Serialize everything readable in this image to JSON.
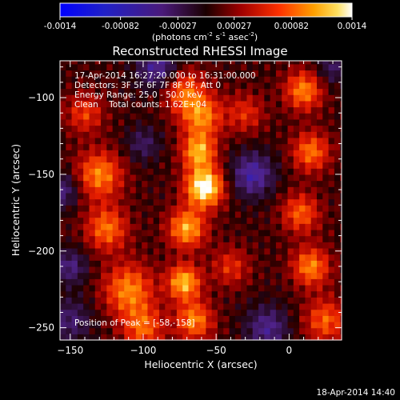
{
  "colorbar": {
    "ticks": [
      "-0.0014",
      "-0.00082",
      "-0.00027",
      "0.00027",
      "0.00082",
      "0.0014"
    ],
    "tick_values": [
      -0.0014,
      -0.00082,
      -0.00027,
      0.00027,
      0.00082,
      0.0014
    ],
    "range": [
      -0.0014,
      0.0014
    ],
    "unit_main": "(photons cm",
    "unit_exp1": "-2",
    "unit_mid": " s",
    "unit_exp2": "-1",
    "unit_end": " asec",
    "unit_exp3": "-2",
    "unit_close": ")"
  },
  "chart_data": {
    "type": "heatmap",
    "title": "Reconstructed RHESSI Image",
    "xlabel": "Heliocentric X (arcsec)",
    "ylabel": "Heliocentric Y (arcsec)",
    "xlim": [
      -157,
      36
    ],
    "ylim": [
      -258,
      -76
    ],
    "xticks": [
      -150,
      -100,
      -50,
      0
    ],
    "yticks": [
      -100,
      -150,
      -200,
      -250
    ],
    "colormap": "blue-purple-red-yellow-white",
    "blobs": [
      {
        "x": -58,
        "y": -158,
        "sigma": 9,
        "amp": 1.0
      },
      {
        "x": -62,
        "y": -135,
        "sigma": 8,
        "amp": 0.7
      },
      {
        "x": -60,
        "y": -112,
        "sigma": 10,
        "amp": 0.6
      },
      {
        "x": -72,
        "y": -95,
        "sigma": 10,
        "amp": 0.5
      },
      {
        "x": -70,
        "y": -185,
        "sigma": 9,
        "amp": 0.7
      },
      {
        "x": -72,
        "y": -220,
        "sigma": 8,
        "amp": 0.75
      },
      {
        "x": -65,
        "y": -245,
        "sigma": 9,
        "amp": 0.6
      },
      {
        "x": -130,
        "y": -150,
        "sigma": 11,
        "amp": 0.6
      },
      {
        "x": -125,
        "y": -185,
        "sigma": 10,
        "amp": 0.55
      },
      {
        "x": -110,
        "y": -225,
        "sigma": 12,
        "amp": 0.6
      },
      {
        "x": -140,
        "y": -110,
        "sigma": 9,
        "amp": 0.4
      },
      {
        "x": -100,
        "y": -250,
        "sigma": 10,
        "amp": 0.5
      },
      {
        "x": 10,
        "y": -95,
        "sigma": 9,
        "amp": 0.6
      },
      {
        "x": 15,
        "y": -135,
        "sigma": 9,
        "amp": 0.55
      },
      {
        "x": 8,
        "y": -175,
        "sigma": 9,
        "amp": 0.5
      },
      {
        "x": 15,
        "y": -210,
        "sigma": 9,
        "amp": 0.6
      },
      {
        "x": 25,
        "y": -245,
        "sigma": 10,
        "amp": 0.5
      },
      {
        "x": -30,
        "y": -110,
        "sigma": 9,
        "amp": 0.35
      },
      {
        "x": -40,
        "y": -210,
        "sigma": 9,
        "amp": 0.35
      },
      {
        "x": -155,
        "y": -160,
        "sigma": 8,
        "amp": -0.4
      },
      {
        "x": -90,
        "y": -80,
        "sigma": 10,
        "amp": -0.5
      },
      {
        "x": -25,
        "y": -150,
        "sigma": 10,
        "amp": -0.55
      },
      {
        "x": -15,
        "y": -250,
        "sigma": 10,
        "amp": -0.45
      },
      {
        "x": -150,
        "y": -245,
        "sigma": 10,
        "amp": -0.35
      },
      {
        "x": 30,
        "y": -80,
        "sigma": 8,
        "amp": -0.3
      },
      {
        "x": -100,
        "y": -130,
        "sigma": 8,
        "amp": -0.3
      },
      {
        "x": -150,
        "y": -210,
        "sigma": 8,
        "amp": -0.4
      }
    ],
    "peak_label": "Position of Peak = [-58,-158]"
  },
  "info": {
    "line1": "17-Apr-2014 16:27:20.000 to 16:31:00.000",
    "line2": "Detectors: 3F 5F 6F 7F 8F 9F, Att 0",
    "line3": "Energy Range: 25.0 - 50.0 keV",
    "line4": "Clean    Total counts: 1.62E+04"
  },
  "footer_date": "18-Apr-2014 14:40"
}
